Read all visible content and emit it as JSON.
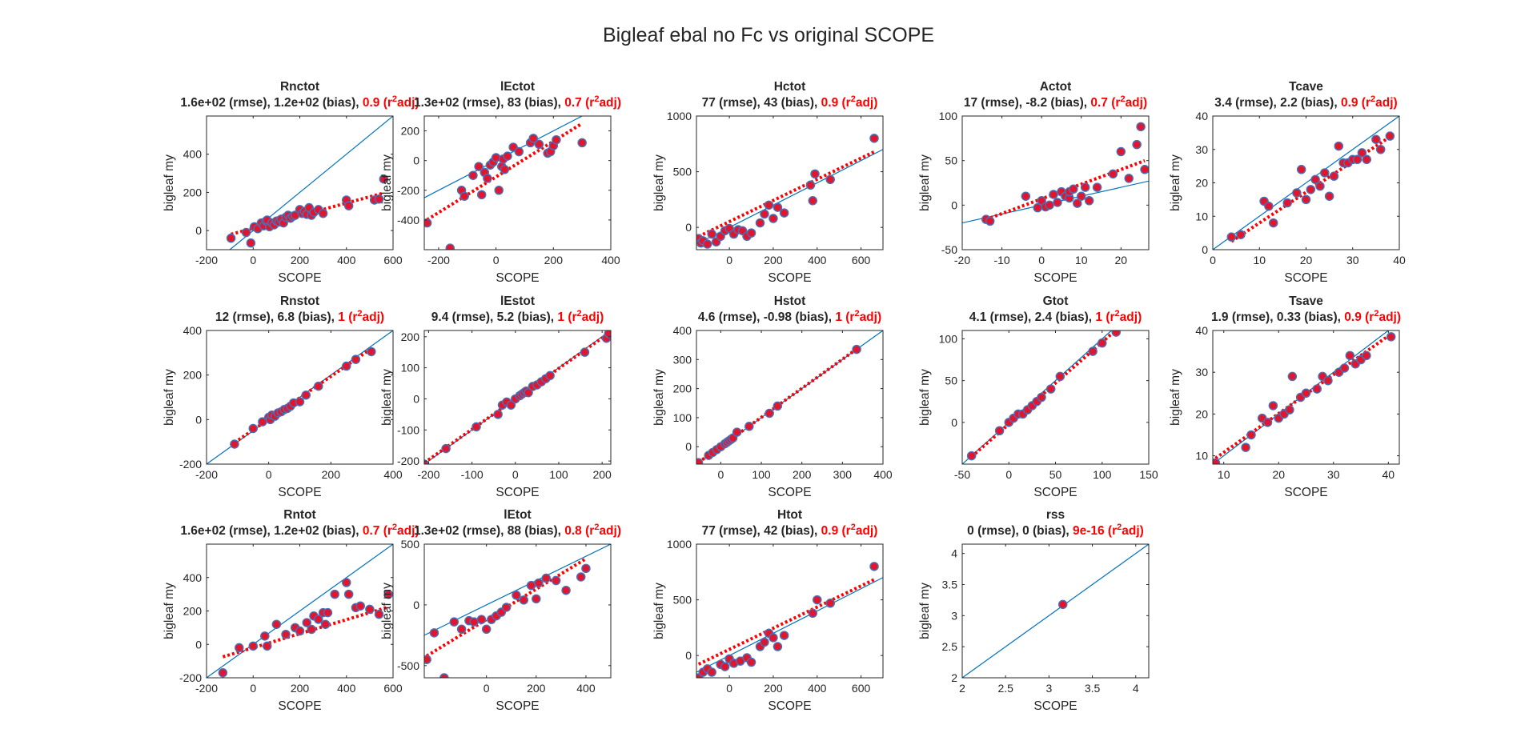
{
  "figure": {
    "title": "Bigleaf ebal no Fc vs original SCOPE",
    "xlabel": "SCOPE",
    "ylabel": "bigleaf my",
    "rmse_suffix": " (rmse), ",
    "bias_suffix": " (bias), ",
    "r2_prefix": " (r",
    "r2_sup": "2",
    "r2_suffix": "adj)"
  },
  "colors": {
    "axes": "#262626",
    "one_to_one": "#0072bd",
    "fit": "#ff0000",
    "marker_fill": "#e3142d",
    "marker_edge": "#4a6fb5",
    "stat_r2": "#ff0000"
  },
  "chart_data": [
    {
      "type": "scatter",
      "title": "Rnctot",
      "rmse": "1.6e+02",
      "bias": "1.2e+02",
      "r2adj": "0.9",
      "xlim": [
        -200,
        600
      ],
      "ylim": [
        -100,
        600
      ],
      "xticks": [
        -200,
        0,
        200,
        400,
        600
      ],
      "yticks": [
        0,
        200,
        400
      ],
      "fit": [
        0.33,
        12
      ],
      "x": [
        -95,
        -30,
        -10,
        5,
        20,
        35,
        45,
        55,
        60,
        70,
        80,
        90,
        100,
        110,
        120,
        130,
        140,
        150,
        160,
        170,
        180,
        200,
        210,
        220,
        230,
        240,
        250,
        260,
        280,
        300,
        400,
        410,
        520,
        540,
        560
      ],
      "y": [
        -40,
        -10,
        -65,
        20,
        10,
        40,
        25,
        50,
        55,
        20,
        40,
        30,
        50,
        45,
        60,
        40,
        70,
        80,
        65,
        75,
        80,
        110,
        90,
        100,
        85,
        120,
        80,
        95,
        110,
        90,
        160,
        130,
        160,
        165,
        270
      ]
    },
    {
      "type": "scatter",
      "title": "lEctot",
      "rmse": "1.3e+02",
      "bias": "83",
      "r2adj": "0.7",
      "xlim": [
        -250,
        400
      ],
      "ylim": [
        -600,
        300
      ],
      "xticks": [
        -200,
        0,
        200,
        400
      ],
      "yticks": [
        -400,
        -200,
        0,
        200
      ],
      "fit": [
        1.2,
        -110
      ],
      "x": [
        -240,
        -160,
        -120,
        -110,
        -80,
        -60,
        -50,
        -40,
        -30,
        -20,
        -10,
        0,
        10,
        20,
        25,
        30,
        40,
        60,
        80,
        120,
        130,
        150,
        180,
        190,
        200,
        210,
        300
      ],
      "y": [
        -420,
        -590,
        -200,
        -240,
        -100,
        -40,
        -230,
        -80,
        -120,
        -30,
        -10,
        20,
        -200,
        -40,
        10,
        -60,
        30,
        90,
        60,
        120,
        150,
        110,
        50,
        60,
        100,
        140,
        120
      ]
    },
    {
      "type": "scatter",
      "title": "Hctot",
      "rmse": "77",
      "bias": "43",
      "r2adj": "0.9",
      "xlim": [
        -150,
        700
      ],
      "ylim": [
        -200,
        1000
      ],
      "xticks": [
        0,
        200,
        400,
        600
      ],
      "yticks": [
        0,
        500,
        1000
      ],
      "fit": [
        0.95,
        52
      ],
      "x": [
        -140,
        -130,
        -120,
        -100,
        -80,
        -60,
        -40,
        -20,
        0,
        20,
        40,
        60,
        80,
        100,
        140,
        160,
        180,
        200,
        220,
        250,
        370,
        380,
        390,
        460,
        660
      ],
      "y": [
        -100,
        -140,
        -120,
        -150,
        -60,
        -130,
        -80,
        -30,
        -10,
        -60,
        -20,
        -30,
        -80,
        -50,
        40,
        120,
        200,
        80,
        180,
        130,
        380,
        240,
        480,
        430,
        800
      ]
    },
    {
      "type": "scatter",
      "title": "Actot",
      "rmse": "17",
      "bias": "-8.2",
      "r2adj": "0.7",
      "xlim": [
        -20,
        27
      ],
      "ylim": [
        -50,
        100
      ],
      "xticks": [
        -20,
        -10,
        0,
        10,
        20
      ],
      "yticks": [
        -50,
        0,
        50,
        100
      ],
      "fit": [
        1.65,
        7
      ],
      "x": [
        -14,
        -13,
        -4,
        -1,
        0,
        1,
        2,
        3,
        4,
        5,
        6,
        7,
        7,
        8,
        9,
        10,
        11,
        12,
        14,
        18,
        20,
        22,
        24,
        25,
        26
      ],
      "y": [
        -16,
        -18,
        10,
        -3,
        5,
        -2,
        0,
        12,
        3,
        15,
        10,
        8,
        15,
        18,
        2,
        10,
        20,
        5,
        20,
        35,
        60,
        30,
        68,
        88,
        40
      ]
    },
    {
      "type": "scatter",
      "title": "Tcave",
      "rmse": "3.4",
      "bias": "2.2",
      "r2adj": "0.9",
      "xlim": [
        0,
        40
      ],
      "ylim": [
        0,
        40
      ],
      "xticks": [
        0,
        10,
        20,
        30,
        40
      ],
      "yticks": [
        0,
        10,
        20,
        30,
        40
      ],
      "fit": [
        0.92,
        -1.2
      ],
      "x": [
        4,
        6,
        11,
        12,
        13,
        16,
        18,
        19,
        20,
        21,
        22,
        23,
        24,
        25,
        26,
        27,
        28,
        29,
        30,
        31,
        32,
        33,
        35,
        36,
        38
      ],
      "y": [
        3.8,
        4.5,
        14.5,
        13,
        8,
        14,
        17,
        24,
        15,
        18,
        21,
        19,
        23,
        16,
        22,
        31,
        26,
        26,
        27,
        27,
        29,
        27,
        33,
        30,
        34
      ]
    },
    {
      "type": "scatter",
      "title": "Rnstot",
      "rmse": "12",
      "bias": "6.8",
      "r2adj": "1",
      "xlim": [
        -200,
        400
      ],
      "ylim": [
        -200,
        400
      ],
      "xticks": [
        -200,
        0,
        200,
        400
      ],
      "yticks": [
        -200,
        0,
        200,
        400
      ],
      "fit": [
        0.96,
        2
      ],
      "x": [
        -110,
        -50,
        -20,
        0,
        5,
        10,
        20,
        30,
        40,
        50,
        60,
        70,
        80,
        100,
        120,
        160,
        250,
        280,
        330
      ],
      "y": [
        -110,
        -40,
        -10,
        10,
        0,
        20,
        15,
        30,
        35,
        45,
        50,
        60,
        75,
        80,
        110,
        150,
        240,
        270,
        305
      ]
    },
    {
      "type": "scatter",
      "title": "lEstot",
      "rmse": "9.4",
      "bias": "5.2",
      "r2adj": "1",
      "xlim": [
        -210,
        220
      ],
      "ylim": [
        -210,
        220
      ],
      "xticks": [
        -200,
        -100,
        0,
        100,
        200
      ],
      "yticks": [
        -200,
        -100,
        0,
        100,
        200
      ],
      "fit": [
        0.98,
        0
      ],
      "x": [
        -210,
        -160,
        -90,
        -40,
        -30,
        -20,
        -10,
        0,
        10,
        15,
        20,
        25,
        30,
        40,
        50,
        60,
        70,
        80,
        160,
        210,
        215
      ],
      "y": [
        -210,
        -160,
        -90,
        -50,
        -20,
        -10,
        -20,
        0,
        10,
        15,
        20,
        25,
        20,
        40,
        45,
        55,
        65,
        75,
        150,
        195,
        210
      ]
    },
    {
      "type": "scatter",
      "title": "Hstot",
      "rmse": "4.6",
      "bias": "-0.98",
      "r2adj": "1",
      "xlim": [
        -60,
        400
      ],
      "ylim": [
        -60,
        400
      ],
      "xticks": [
        0,
        100,
        200,
        300,
        400
      ],
      "yticks": [
        0,
        100,
        200,
        300,
        400
      ],
      "fit": [
        1.0,
        1
      ],
      "x": [
        -55,
        -30,
        -20,
        -10,
        0,
        10,
        15,
        20,
        25,
        30,
        40,
        70,
        120,
        140,
        335
      ],
      "y": [
        -55,
        -30,
        -20,
        -10,
        0,
        10,
        15,
        20,
        25,
        30,
        50,
        70,
        115,
        140,
        335
      ]
    },
    {
      "type": "scatter",
      "title": "Gtot",
      "rmse": "4.1",
      "bias": "2.4",
      "r2adj": "1",
      "xlim": [
        -50,
        150
      ],
      "ylim": [
        -50,
        110
      ],
      "xticks": [
        -50,
        0,
        50,
        100,
        150
      ],
      "yticks": [
        0,
        50,
        100
      ],
      "fit": [
        0.98,
        -2
      ],
      "x": [
        -40,
        -10,
        0,
        5,
        10,
        15,
        20,
        25,
        30,
        35,
        45,
        55,
        90,
        100,
        115
      ],
      "y": [
        -40,
        -10,
        0,
        5,
        10,
        10,
        15,
        20,
        25,
        30,
        40,
        55,
        85,
        95,
        108
      ]
    },
    {
      "type": "scatter",
      "title": "Tsave",
      "rmse": "1.9",
      "bias": "0.33",
      "r2adj": "0.9",
      "xlim": [
        8,
        42
      ],
      "ylim": [
        8,
        40
      ],
      "xticks": [
        10,
        20,
        30,
        40
      ],
      "yticks": [
        10,
        20,
        30,
        40
      ],
      "fit": [
        0.93,
        1.5
      ],
      "x": [
        8.5,
        14,
        15,
        17,
        18,
        19,
        20,
        21,
        22,
        22.5,
        24,
        25,
        27,
        28,
        29,
        31,
        32,
        33,
        34,
        35,
        36,
        40.5
      ],
      "y": [
        8.3,
        12,
        15,
        19,
        18,
        22,
        19,
        20,
        21,
        29,
        24,
        25,
        26,
        29,
        28,
        30,
        31,
        34,
        32,
        33,
        34,
        38.5
      ]
    },
    {
      "type": "scatter",
      "title": "Rntot",
      "rmse": "1.6e+02",
      "bias": "1.2e+02",
      "r2adj": "0.7",
      "xlim": [
        -200,
        600
      ],
      "ylim": [
        -200,
        600
      ],
      "xticks": [
        -200,
        0,
        200,
        400,
        600
      ],
      "yticks": [
        -200,
        0,
        200,
        400
      ],
      "fit": [
        0.42,
        -20
      ],
      "x": [
        -130,
        -60,
        0,
        50,
        60,
        100,
        140,
        180,
        200,
        230,
        250,
        260,
        280,
        300,
        310,
        320,
        350,
        400,
        410,
        440,
        460,
        500,
        540,
        580
      ],
      "y": [
        -170,
        -20,
        -10,
        50,
        -10,
        120,
        60,
        100,
        80,
        130,
        90,
        170,
        150,
        190,
        120,
        190,
        300,
        370,
        300,
        220,
        230,
        210,
        180,
        300
      ]
    },
    {
      "type": "scatter",
      "title": "lEtot",
      "rmse": "1.3e+02",
      "bias": "88",
      "r2adj": "0.8",
      "xlim": [
        -250,
        500
      ],
      "ylim": [
        -600,
        500
      ],
      "xticks": [
        0,
        200,
        400
      ],
      "yticks": [
        -500,
        0,
        500
      ],
      "fit": [
        1.25,
        -120
      ],
      "x": [
        -240,
        -210,
        -170,
        -130,
        -100,
        -70,
        -50,
        -20,
        0,
        20,
        40,
        60,
        80,
        120,
        150,
        180,
        200,
        210,
        240,
        280,
        320,
        380,
        400
      ],
      "y": [
        -450,
        -230,
        -600,
        -140,
        -200,
        -130,
        -140,
        -120,
        -200,
        -120,
        -90,
        -60,
        -20,
        80,
        40,
        160,
        50,
        180,
        220,
        200,
        120,
        230,
        300
      ]
    },
    {
      "type": "scatter",
      "title": "Htot",
      "rmse": "77",
      "bias": "42",
      "r2adj": "0.9",
      "xlim": [
        -150,
        700
      ],
      "ylim": [
        -200,
        1000
      ],
      "xticks": [
        0,
        200,
        400,
        600
      ],
      "yticks": [
        0,
        500,
        1000
      ],
      "fit": [
        0.95,
        55
      ],
      "x": [
        -140,
        -120,
        -100,
        -80,
        -40,
        -20,
        0,
        20,
        50,
        80,
        100,
        140,
        160,
        180,
        200,
        220,
        250,
        380,
        400,
        460,
        660
      ],
      "y": [
        -200,
        -150,
        -120,
        -150,
        -80,
        -100,
        -30,
        -70,
        -50,
        -20,
        -60,
        80,
        120,
        200,
        160,
        80,
        180,
        380,
        500,
        470,
        800
      ]
    },
    {
      "type": "scatter",
      "title": "rss",
      "rmse": "0",
      "bias": "0",
      "r2adj": "9e-16",
      "xlim": [
        2,
        4.15
      ],
      "ylim": [
        2,
        4.15
      ],
      "xticks": [
        2,
        2.5,
        3,
        3.5,
        4
      ],
      "yticks": [
        2,
        2.5,
        3,
        3.5,
        4
      ],
      "fit": null,
      "x": [
        3.16
      ],
      "y": [
        3.18
      ]
    }
  ]
}
